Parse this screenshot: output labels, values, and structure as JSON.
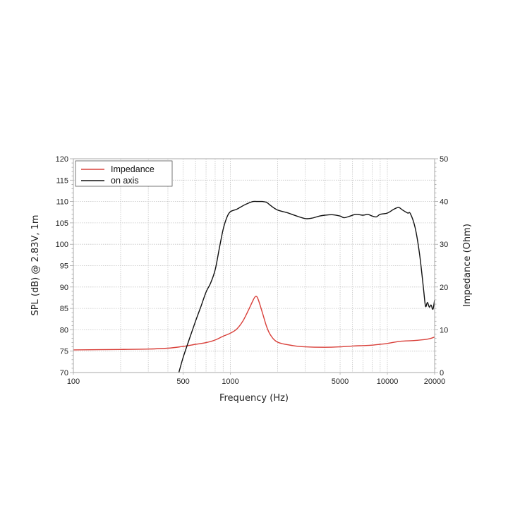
{
  "chart_data": {
    "type": "line",
    "title": "",
    "xlabel": "Frequency (Hz)",
    "ylabel": "SPL (dB) @ 2.83V, 1m",
    "ylabel_right": "Impedance (Ohm)",
    "xscale": "log",
    "xlim": [
      100,
      20000
    ],
    "ylim": [
      70,
      120
    ],
    "ylim_right": [
      0,
      50
    ],
    "grid": true,
    "legend_position": "upper-left",
    "x_ticks": [
      100,
      500,
      1000,
      5000,
      10000,
      20000
    ],
    "x_tick_labels": [
      "100",
      "500",
      "1000",
      "5000",
      "10000",
      "20000"
    ],
    "y_ticks": [
      70,
      75,
      80,
      85,
      90,
      95,
      100,
      105,
      110,
      115,
      120
    ],
    "y_tick_labels": [
      "70",
      "75",
      "80",
      "85",
      "90",
      "95",
      "100",
      "105",
      "110",
      "115",
      "120"
    ],
    "y_right_ticks": [
      0,
      10,
      20,
      30,
      40,
      50
    ],
    "y_right_tick_labels": [
      "0",
      "10",
      "20",
      "30",
      "40",
      "50"
    ],
    "series": [
      {
        "name": "Impedance",
        "axis": "right",
        "color": "#d9403a",
        "x": [
          100,
          200,
          300,
          400,
          500,
          600,
          700,
          800,
          900,
          1000,
          1100,
          1200,
          1300,
          1400,
          1450,
          1500,
          1600,
          1700,
          1800,
          2000,
          2500,
          3000,
          4000,
          5000,
          6000,
          7000,
          8000,
          9000,
          10000,
          12000,
          15000,
          18000,
          20000
        ],
        "values": [
          5.3,
          5.4,
          5.5,
          5.7,
          6.1,
          6.6,
          7.0,
          7.6,
          8.5,
          9.2,
          10.2,
          12.0,
          14.5,
          17.0,
          17.8,
          17.2,
          14.0,
          10.8,
          8.8,
          7.1,
          6.3,
          6.0,
          5.9,
          6.0,
          6.2,
          6.3,
          6.4,
          6.6,
          6.8,
          7.3,
          7.5,
          7.8,
          8.3
        ]
      },
      {
        "name": "on axis",
        "axis": "left",
        "color": "#111111",
        "x": [
          470,
          500,
          550,
          600,
          650,
          700,
          750,
          800,
          850,
          900,
          950,
          1000,
          1100,
          1200,
          1300,
          1400,
          1500,
          1600,
          1700,
          1800,
          2000,
          2300,
          2600,
          3000,
          3300,
          3700,
          4000,
          4500,
          5000,
          5300,
          5800,
          6300,
          7000,
          7500,
          8000,
          8500,
          9000,
          10000,
          11000,
          11800,
          12500,
          13500,
          14000,
          15000,
          16000,
          17000,
          17500,
          18000,
          18500,
          19000,
          19500,
          20000
        ],
        "values": [
          70,
          73.5,
          78,
          82,
          85.5,
          88.8,
          91,
          94,
          99,
          103.5,
          106.3,
          107.6,
          108.2,
          109.0,
          109.6,
          110.0,
          110.0,
          110.0,
          109.8,
          109.1,
          108.0,
          107.4,
          106.7,
          106.0,
          106.1,
          106.6,
          106.8,
          106.9,
          106.6,
          106.2,
          106.6,
          107.0,
          106.8,
          107.0,
          106.6,
          106.4,
          107.0,
          107.3,
          108.2,
          108.6,
          108.0,
          107.3,
          107.2,
          104.0,
          98.0,
          89.5,
          85.5,
          86.4,
          85.3,
          85.8,
          84.8,
          87.0
        ]
      }
    ]
  },
  "legend": {
    "items": [
      {
        "label": "Impedance",
        "color": "#d9403a"
      },
      {
        "label": "on axis",
        "color": "#111111"
      }
    ]
  }
}
